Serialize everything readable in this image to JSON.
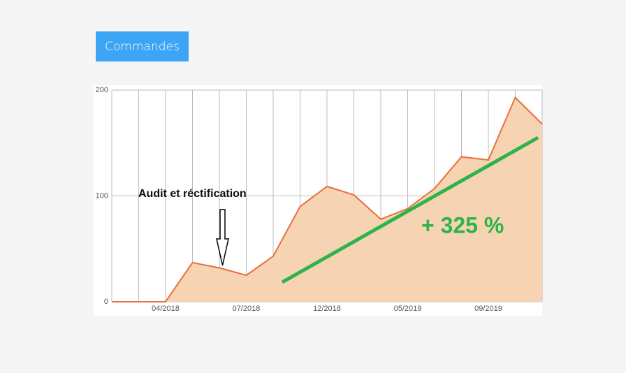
{
  "button": {
    "label": "Commandes"
  },
  "chart_data": {
    "type": "area",
    "categories": [
      null,
      null,
      "04/2018",
      null,
      null,
      "07/2018",
      null,
      null,
      "12/2018",
      null,
      null,
      "05/2019",
      null,
      null,
      "09/2019",
      null,
      null
    ],
    "values": [
      0,
      0,
      0,
      37,
      32,
      25,
      43,
      90,
      109,
      101,
      78,
      88,
      107,
      137,
      134,
      193,
      168
    ],
    "color": "#e8703a",
    "fill": "#f5d3b3",
    "ylim": [
      0,
      200
    ],
    "yticks": [
      0,
      100,
      200
    ],
    "grid": true,
    "annotations": [
      "Audit et réctification",
      "+ 325 %"
    ]
  }
}
